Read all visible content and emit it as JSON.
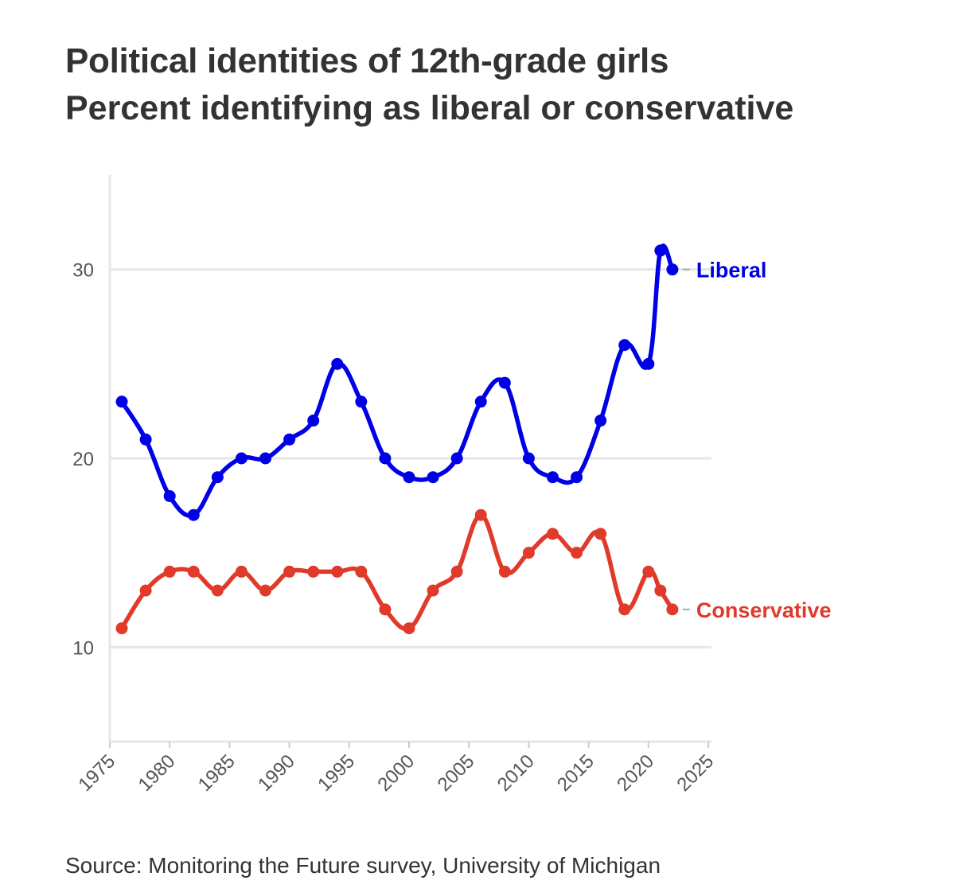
{
  "chart_data": {
    "type": "line",
    "title": "Political identities of 12th-grade girls",
    "subtitle": "Percent identifying as liberal or conservative",
    "source": "Source: Monitoring the Future survey, University of Michigan",
    "xlabel": "",
    "ylabel": "",
    "xlim": [
      1975,
      2025
    ],
    "ylim": [
      5,
      35
    ],
    "x_ticks": [
      1975,
      1980,
      1985,
      1990,
      1995,
      2000,
      2005,
      2010,
      2015,
      2020,
      2025
    ],
    "y_ticks": [
      10,
      20,
      30
    ],
    "grid": true,
    "series": [
      {
        "name": "Liberal",
        "color": "#0000e6",
        "x": [
          1976,
          1978,
          1980,
          1982,
          1984,
          1986,
          1988,
          1990,
          1992,
          1994,
          1996,
          1998,
          2000,
          2002,
          2004,
          2006,
          2008,
          2010,
          2012,
          2014,
          2016,
          2018,
          2020,
          2021,
          2022
        ],
        "values": [
          23,
          21,
          18,
          17,
          19,
          20,
          20,
          21,
          22,
          25,
          23,
          20,
          19,
          19,
          20,
          23,
          24,
          20,
          19,
          19,
          22,
          26,
          25,
          31,
          30
        ]
      },
      {
        "name": "Conservative",
        "color": "#e03a2a",
        "x": [
          1976,
          1978,
          1980,
          1982,
          1984,
          1986,
          1988,
          1990,
          1992,
          1994,
          1996,
          1998,
          2000,
          2002,
          2004,
          2006,
          2008,
          2010,
          2012,
          2014,
          2016,
          2018,
          2020,
          2021,
          2022
        ],
        "values": [
          11,
          13,
          14,
          14,
          13,
          14,
          13,
          14,
          14,
          14,
          14,
          12,
          11,
          13,
          14,
          17,
          14,
          15,
          16,
          15,
          16,
          12,
          14,
          13,
          12
        ]
      }
    ]
  }
}
